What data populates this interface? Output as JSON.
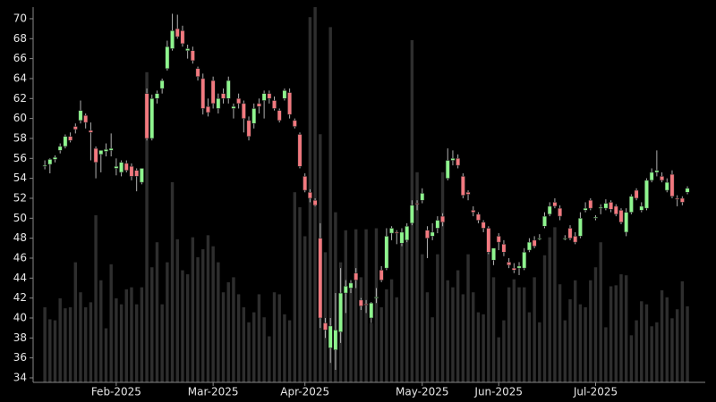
{
  "chart_data": {
    "type": "candlestick",
    "up_color": "#8ef58e",
    "down_color": "#f2797f",
    "wick_color": "#b0b0b0",
    "volume_color": "#2e2e2e",
    "xlim": [
      -2.3,
      129.5
    ],
    "xticks": [
      {
        "value": 14,
        "label": "Feb-2025"
      },
      {
        "value": 33,
        "label": "Mar-2025"
      },
      {
        "value": 51,
        "label": "Apr-2025"
      },
      {
        "value": 74,
        "label": "May-2025"
      },
      {
        "value": 89,
        "label": "Jun-2025"
      },
      {
        "value": 108,
        "label": "Jul-2025"
      }
    ],
    "ylim": [
      33.55,
      71.16
    ],
    "yticks": [
      34,
      36,
      38,
      40,
      42,
      44,
      46,
      48,
      50,
      52,
      54,
      56,
      58,
      60,
      62,
      64,
      66,
      68,
      70
    ],
    "open": [
      55.2,
      55.4,
      55.9,
      56.8,
      57.2,
      58.2,
      59.2,
      59.8,
      60.3,
      58.8,
      57.0,
      56.4,
      56.7,
      56.8,
      55.0,
      54.6,
      55.5,
      55.2,
      54.8,
      53.6,
      62.5,
      58.0,
      62.0,
      63.0,
      65.0,
      67.0,
      69.0,
      68.8,
      66.8,
      66.8,
      65.0,
      64.0,
      61.2,
      63.8,
      61.0,
      62.5,
      62.0,
      61.0,
      62.0,
      61.5,
      59.8,
      59.5,
      61.5,
      61.8,
      62.5,
      61.8,
      60.8,
      62.0,
      62.6,
      59.8,
      58.4,
      54.2,
      52.6,
      51.8,
      48.0,
      39.5,
      37.0,
      36.8,
      38.6,
      42.5,
      43.0,
      44.5,
      41.8,
      41.4,
      40.0,
      42.0,
      44.8,
      45.0,
      48.5,
      48.6,
      47.5,
      47.8,
      49.5,
      51.5,
      51.8,
      48.8,
      48.2,
      49.0,
      50.2,
      54.0,
      55.8,
      56.0,
      54.2,
      52.6,
      50.8,
      50.4,
      49.6,
      49.0,
      45.8,
      48.2,
      47.4,
      45.6,
      45.0,
      45.0,
      45.0,
      46.8,
      47.8,
      48.0,
      49.2,
      50.4,
      51.6,
      51.0,
      48.0,
      49.0,
      48.2,
      48.2,
      50.8,
      51.8,
      50.0,
      51.0,
      51.0,
      51.6,
      51.2,
      50.8,
      48.6,
      50.6,
      52.8,
      50.8,
      51.0,
      53.8,
      54.6,
      54.2,
      52.8,
      54.4,
      52.0,
      52.0,
      52.6
    ],
    "high": [
      55.8,
      56.0,
      56.3,
      57.5,
      58.4,
      58.6,
      59.5,
      61.8,
      60.5,
      59.6,
      57.2,
      56.8,
      57.5,
      58.5,
      56.0,
      55.8,
      55.8,
      55.5,
      55.0,
      55.0,
      63.0,
      62.4,
      62.8,
      64.0,
      67.8,
      70.5,
      70.4,
      69.3,
      67.4,
      67.2,
      65.2,
      64.5,
      62.0,
      64.2,
      62.5,
      63.0,
      64.2,
      61.5,
      62.5,
      61.8,
      60.2,
      61.5,
      62.0,
      62.8,
      62.8,
      62.2,
      61.0,
      63.0,
      63.0,
      60.0,
      58.6,
      54.5,
      52.9,
      52.0,
      49.5,
      40.0,
      40.0,
      42.5,
      45.0,
      43.8,
      43.8,
      45.0,
      42.0,
      41.8,
      41.6,
      43.0,
      45.2,
      49.0,
      49.2,
      48.8,
      49.0,
      49.5,
      51.8,
      51.8,
      53.0,
      49.2,
      49.5,
      50.2,
      50.5,
      57.0,
      56.8,
      56.4,
      54.5,
      52.8,
      51.2,
      50.6,
      49.8,
      49.2,
      47.0,
      48.5,
      47.8,
      46.0,
      45.5,
      45.6,
      47.0,
      48.0,
      48.2,
      48.4,
      50.6,
      51.6,
      52.0,
      51.3,
      48.3,
      49.3,
      48.6,
      50.6,
      51.6,
      52.0,
      50.3,
      51.4,
      51.9,
      51.8,
      51.4,
      51.0,
      51.0,
      52.4,
      53.0,
      51.6,
      54.0,
      55.0,
      56.8,
      54.6,
      54.0,
      54.8,
      52.3,
      52.2,
      53.2
    ],
    "low": [
      54.9,
      54.5,
      55.6,
      56.5,
      57.0,
      57.6,
      58.5,
      59.5,
      59.0,
      55.8,
      54.0,
      54.6,
      56.2,
      56.2,
      54.3,
      54.2,
      54.6,
      53.8,
      52.7,
      53.4,
      57.8,
      57.8,
      61.5,
      62.5,
      64.8,
      66.8,
      68.0,
      67.2,
      66.0,
      65.5,
      63.8,
      60.4,
      60.2,
      61.0,
      60.5,
      61.5,
      61.5,
      60.0,
      61.0,
      58.6,
      57.8,
      59.0,
      60.5,
      60.0,
      61.5,
      60.8,
      59.6,
      61.8,
      60.0,
      59.0,
      55.0,
      52.6,
      51.6,
      51.2,
      39.0,
      38.0,
      35.5,
      34.8,
      37.5,
      40.5,
      42.5,
      43.0,
      40.8,
      40.5,
      39.5,
      41.5,
      43.6,
      44.8,
      47.8,
      47.4,
      47.2,
      47.6,
      49.3,
      50.8,
      51.5,
      46.0,
      47.8,
      48.5,
      49.2,
      53.8,
      55.3,
      55.0,
      52.0,
      51.8,
      50.2,
      49.5,
      48.6,
      46.4,
      45.3,
      46.8,
      46.2,
      45.0,
      44.5,
      44.3,
      44.8,
      46.6,
      47.0,
      47.8,
      49.0,
      50.2,
      51.0,
      49.8,
      47.8,
      47.8,
      47.4,
      48.0,
      50.6,
      50.8,
      49.8,
      50.4,
      50.8,
      50.6,
      50.2,
      49.4,
      48.2,
      50.4,
      51.8,
      50.6,
      50.8,
      53.6,
      54.2,
      53.6,
      52.6,
      52.0,
      51.2,
      51.3,
      52.4
    ],
    "close": [
      55.3,
      55.9,
      56.1,
      57.2,
      58.2,
      57.8,
      58.9,
      60.8,
      59.6,
      58.6,
      55.6,
      56.8,
      56.9,
      57.0,
      55.2,
      55.6,
      54.8,
      54.2,
      54.2,
      55.0,
      58.0,
      62.0,
      62.5,
      63.8,
      67.2,
      68.8,
      68.2,
      67.5,
      67.0,
      65.8,
      64.2,
      61.0,
      60.6,
      61.5,
      62.0,
      62.0,
      63.8,
      61.2,
      61.5,
      60.0,
      58.2,
      61.0,
      61.2,
      62.5,
      62.0,
      61.0,
      59.8,
      62.8,
      60.4,
      59.2,
      55.2,
      52.8,
      52.0,
      51.3,
      40.0,
      38.8,
      39.2,
      38.8,
      42.5,
      43.2,
      43.5,
      43.8,
      41.2,
      41.3,
      41.5,
      42.1,
      43.8,
      48.2,
      49.0,
      48.5,
      48.6,
      49.2,
      51.3,
      51.4,
      52.5,
      48.0,
      48.6,
      49.8,
      49.6,
      55.8,
      56.0,
      55.3,
      52.3,
      52.4,
      50.6,
      49.8,
      49.0,
      46.6,
      47.0,
      47.6,
      46.6,
      45.3,
      44.8,
      45.2,
      46.6,
      47.6,
      47.2,
      48.0,
      50.2,
      51.2,
      51.2,
      50.2,
      48.0,
      48.0,
      47.6,
      50.0,
      51.0,
      51.0,
      50.1,
      51.1,
      51.5,
      50.9,
      50.4,
      49.6,
      50.6,
      52.2,
      52.0,
      51.2,
      53.8,
      54.6,
      54.8,
      53.8,
      53.6,
      52.2,
      51.9,
      51.6,
      53.0
    ],
    "volume": [
      7.5,
      6.3,
      6.2,
      8.4,
      7.4,
      7.5,
      12,
      9,
      7.5,
      8,
      16.7,
      10.2,
      5.4,
      11.8,
      8.4,
      7.8,
      9.3,
      9.5,
      7.8,
      9.5,
      31,
      11.5,
      14,
      7.8,
      12,
      20,
      14.3,
      11.2,
      10.8,
      14.5,
      12.5,
      13.3,
      14.7,
      13.6,
      12,
      9,
      10,
      10.5,
      8.8,
      7.5,
      6,
      7,
      8.8,
      6.5,
      4.6,
      9,
      8.8,
      6.8,
      6.2,
      19,
      17.5,
      14.6,
      36.5,
      37.5,
      24.8,
      13,
      35.5,
      17,
      12,
      15.2,
      10,
      15.3,
      10.5,
      15.3,
      5.9,
      15.4,
      7.5,
      9.3,
      10.3,
      8.5,
      14,
      15.5,
      34.2,
      21,
      12.8,
      9,
      6.5,
      12.8,
      21,
      10.2,
      9.5,
      11.2,
      8.8,
      12.8,
      9,
      7,
      6.8,
      13,
      10.5,
      4.5,
      6.2,
      9.5,
      10.3,
      9.5,
      9.5,
      7,
      10.5,
      6,
      12.7,
      14.5,
      15.5,
      9.8,
      6.2,
      8.3,
      10.2,
      7.8,
      7.5,
      10.2,
      11.5,
      14,
      5.5,
      9.6,
      9.7,
      10.8,
      10.7,
      4.7,
      6.2,
      8.1,
      7.8,
      5.6,
      6,
      9.2,
      8.5,
      6.4,
      7.3,
      10.1,
      7.6
    ]
  }
}
